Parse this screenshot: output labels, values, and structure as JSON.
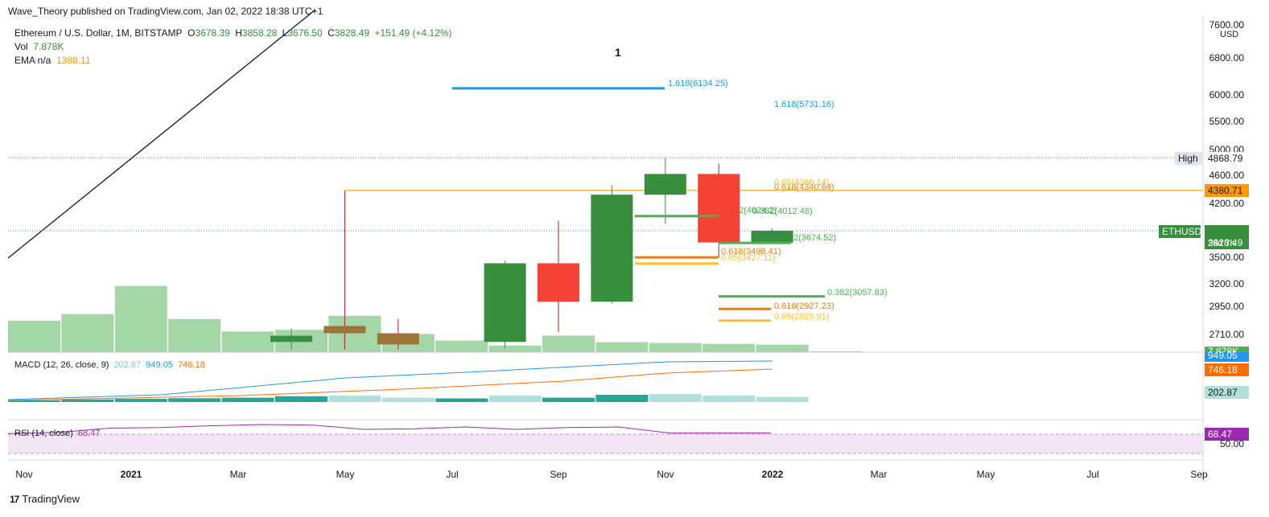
{
  "caption": "Wave_Theory published on TradingView.com, Jan 02, 2022 18:38 UTC+1",
  "legend": {
    "symbol": "Ethereum / U.S. Dollar, 1M, BITSTAMP",
    "o_label": "O",
    "o_value": "3678.39",
    "h_label": "H",
    "h_value": "3858.28",
    "l_label": "L",
    "l_value": "3676.50",
    "c_label": "C",
    "c_value": "3828.49",
    "change": "+151.49 (+4.12%)",
    "vol_label": "Vol",
    "vol_value": "7.878K",
    "ema_label": "EMA n/a",
    "ema_value": "1388.11"
  },
  "wave_label": "1",
  "macd": {
    "label": "MACD (12, 26, close, 9)",
    "hist": "202.87",
    "macd": "949.05",
    "signal": "746.18"
  },
  "rsi": {
    "label": "RSI (14, close)",
    "value": "68.47",
    "axis_value": "50.00"
  },
  "brand": {
    "logo": "17",
    "name": "TradingView"
  },
  "colors": {
    "up": "#388e3c",
    "down": "#f44336",
    "bronze": "#9c7439",
    "volume": "#a5d6a7",
    "fib_blue": "#2196f3",
    "fib_orange": "#f57c00",
    "fib_yellow": "#fbc02d",
    "fib_green": "#4caf50",
    "macd_line": "#2196f3",
    "signal_line": "#ff6d00",
    "rsi_line": "#9c27b0",
    "rsi_band": "#f3e5f5"
  },
  "chart_data": {
    "type": "candlestick",
    "timeframe": "1M",
    "x_ticks": [
      "Nov",
      "2021",
      "Mar",
      "May",
      "Jul",
      "Sep",
      "Nov",
      "2022",
      "Mar",
      "May",
      "Jul",
      "Sep"
    ],
    "price_axis": {
      "unit": "USD",
      "ticks": [
        "7600.00",
        "6800.00",
        "6000.00",
        "5500.00",
        "5000.00",
        "4600.00",
        "4200.00",
        "3500.00",
        "3200.00",
        "2950.00",
        "2710.00"
      ],
      "high_label": "High",
      "high_value": "4868.79",
      "level_value": "4380.71",
      "symbol_tag": "ETHUSD",
      "last_price": "3828.49",
      "countdown": "29d 7h",
      "vol_value": "7.878K",
      "macd_value": "949.05",
      "signal_value": "746.18",
      "hist_value": "202.87"
    },
    "candles": [
      {
        "month": "2021-04",
        "open": 2650,
        "high": 2760,
        "low": 2590,
        "close": 2700
      },
      {
        "month": "2021-05",
        "open": 2780,
        "high": 4380,
        "low": 2590,
        "close": 2720
      },
      {
        "month": "2021-06",
        "open": 2720,
        "high": 2840,
        "low": 2590,
        "close": 2630
      },
      {
        "month": "2021-08",
        "open": 2650,
        "high": 3460,
        "low": 2600,
        "close": 3430
      },
      {
        "month": "2021-09",
        "open": 3430,
        "high": 3960,
        "low": 2730,
        "close": 3000
      },
      {
        "month": "2021-10",
        "open": 3000,
        "high": 4450,
        "low": 2980,
        "close": 4320
      },
      {
        "month": "2021-11",
        "open": 4320,
        "high": 4869,
        "low": 3920,
        "close": 4620
      },
      {
        "month": "2021-12",
        "open": 4620,
        "high": 4780,
        "low": 3500,
        "close": 3680
      },
      {
        "month": "2022-01",
        "open": 3678.39,
        "high": 3858.28,
        "low": 3676.5,
        "close": 3828.49
      }
    ],
    "volume_relative": [
      0.38,
      0.46,
      0.8,
      0.4,
      0.25,
      0.27,
      0.44,
      0.22,
      0.14,
      0.08,
      0.2,
      0.12,
      0.11,
      0.1,
      0.09,
      0.01
    ],
    "fib_levels": [
      {
        "label": "1.618(6134.25)",
        "price": 6134.25,
        "color": "blue"
      },
      {
        "label": "1.618(5731.16)",
        "price": 5731.16,
        "color": "blue"
      },
      {
        "label": "0.618(4340.64)",
        "price": 4340.64,
        "color": "orange"
      },
      {
        "label": "0.65(4386.14)",
        "price": 4386.14,
        "color": "yellow"
      },
      {
        "label": "2(4024.2)",
        "price": 4024.2,
        "color": "green"
      },
      {
        "label": "0.382(4012.48)",
        "price": 4012.48,
        "color": "green"
      },
      {
        "label": "2(3674.52)",
        "price": 3674.52,
        "color": "green"
      },
      {
        "label": "0.618(3498.41)",
        "price": 3498.41,
        "color": "orange"
      },
      {
        "label": "0.65(3427.11)",
        "price": 3427.11,
        "color": "yellow"
      },
      {
        "label": "0.382(3057.83)",
        "price": 3057.83,
        "color": "green"
      },
      {
        "label": "0.618(2927.23)",
        "price": 2927.23,
        "color": "orange"
      },
      {
        "label": "0.65(2825.91)",
        "price": 2825.91,
        "color": "yellow"
      }
    ],
    "macd_hist_relative": [
      0.12,
      0.18,
      0.22,
      0.26,
      0.3,
      0.4,
      0.45,
      0.3,
      0.25,
      0.45,
      0.3,
      0.5,
      0.55,
      0.45,
      0.35
    ],
    "rsi_relative": [
      0.05,
      0.15,
      0.5,
      0.55,
      0.7,
      0.8,
      0.75,
      0.4,
      0.45,
      0.6,
      0.4,
      0.55,
      0.6,
      0.1,
      0.1,
      0.1
    ]
  }
}
